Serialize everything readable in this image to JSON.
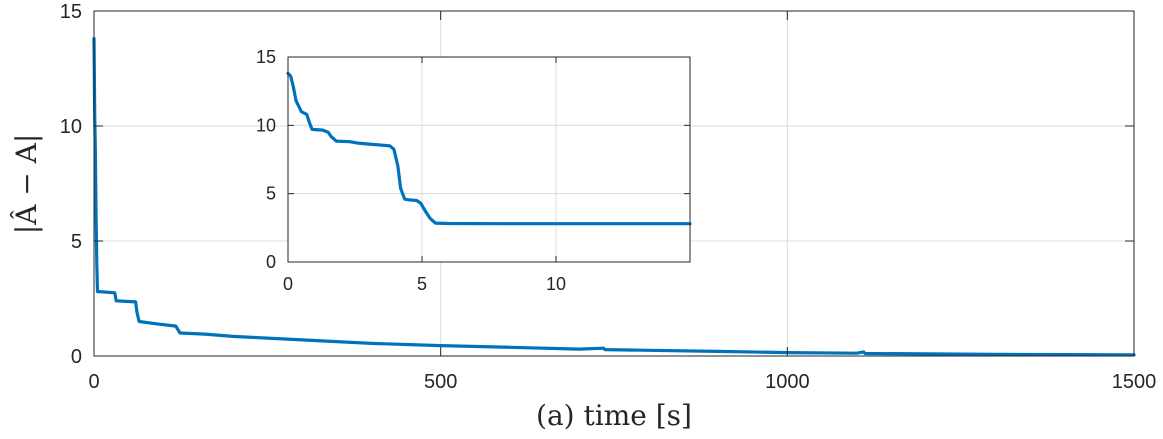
{
  "chart_data": [
    {
      "type": "line",
      "xlabel": "(a) time [s]",
      "ylabel": "|Â − A|",
      "xlim": [
        0,
        1500
      ],
      "ylim": [
        0,
        15
      ],
      "xticks": [
        0,
        500,
        1000,
        1500
      ],
      "yticks": [
        0,
        5,
        10,
        15
      ],
      "xtick_labels": [
        "0",
        "500",
        "1000",
        "1500"
      ],
      "ytick_labels": [
        "0",
        "5",
        "10",
        "15"
      ],
      "grid": true,
      "color": "#0072BD",
      "series": [
        {
          "x": [
            0,
            1,
            2,
            3,
            4,
            5,
            8,
            30,
            32,
            60,
            62,
            65,
            90,
            118,
            120,
            124,
            160,
            200,
            250,
            300,
            400,
            500,
            600,
            700,
            735,
            737,
            800,
            900,
            1000,
            1100,
            1110,
            1112,
            1200,
            1300,
            1400,
            1500
          ],
          "y": [
            13.8,
            10.5,
            8.8,
            6.0,
            4.0,
            2.8,
            2.8,
            2.75,
            2.4,
            2.35,
            1.9,
            1.5,
            1.4,
            1.3,
            1.2,
            1.0,
            0.95,
            0.85,
            0.78,
            0.7,
            0.55,
            0.45,
            0.38,
            0.3,
            0.34,
            0.28,
            0.25,
            0.2,
            0.15,
            0.12,
            0.18,
            0.11,
            0.09,
            0.07,
            0.06,
            0.05
          ]
        }
      ]
    },
    {
      "type": "line",
      "xlabel": "",
      "ylabel": "",
      "xlim": [
        0,
        15
      ],
      "ylim": [
        0,
        15
      ],
      "xticks": [
        0,
        5,
        10
      ],
      "yticks": [
        0,
        5,
        10,
        15
      ],
      "xtick_labels": [
        "0",
        "5",
        "10"
      ],
      "ytick_labels": [
        "0",
        "5",
        "10",
        "15"
      ],
      "grid": true,
      "color": "#0072BD",
      "series": [
        {
          "x": [
            0,
            0.1,
            0.2,
            0.3,
            0.5,
            0.7,
            0.8,
            0.9,
            1.3,
            1.5,
            1.6,
            1.8,
            2.3,
            2.6,
            3.2,
            3.8,
            3.95,
            4.1,
            4.2,
            4.35,
            4.5,
            4.8,
            4.95,
            5.1,
            5.3,
            5.5,
            6.0,
            8.0,
            10.0,
            12.0,
            14.0,
            15.0
          ],
          "y": [
            13.8,
            13.6,
            12.8,
            11.8,
            11.0,
            10.8,
            10.2,
            9.7,
            9.65,
            9.5,
            9.2,
            8.85,
            8.8,
            8.7,
            8.6,
            8.5,
            8.25,
            7.0,
            5.4,
            4.6,
            4.55,
            4.5,
            4.3,
            3.8,
            3.2,
            2.85,
            2.82,
            2.8,
            2.8,
            2.8,
            2.8,
            2.8
          ]
        }
      ]
    }
  ]
}
